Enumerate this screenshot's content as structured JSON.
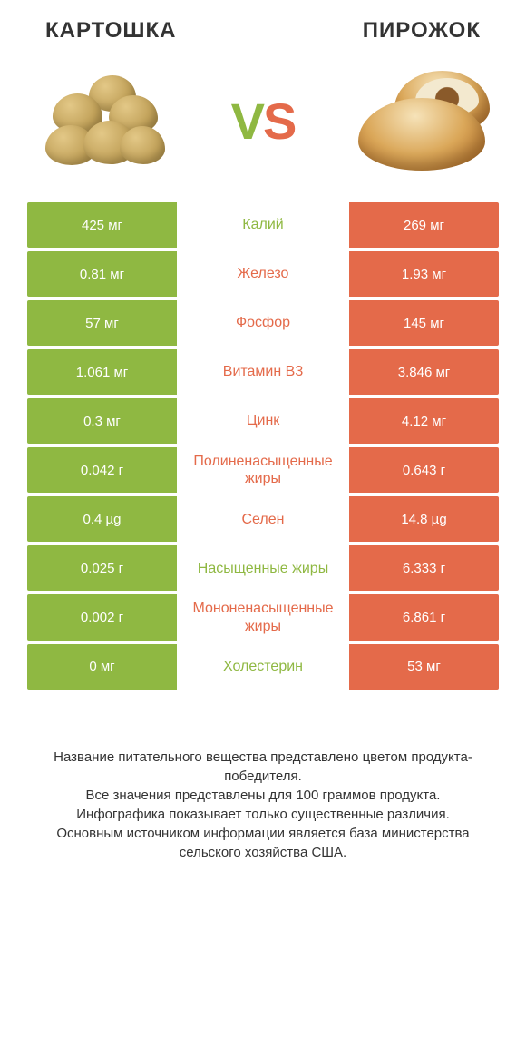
{
  "header": {
    "left_title": "КАРТОШКА",
    "right_title": "ПИРОЖОК",
    "vs_v": "V",
    "vs_s": "S"
  },
  "colors": {
    "green": "#8fb842",
    "orange": "#e46a4a",
    "text": "#333333",
    "bg": "#ffffff"
  },
  "rows": [
    {
      "label": "Калий",
      "left": "425 мг",
      "right": "269 мг",
      "winner": "left"
    },
    {
      "label": "Железо",
      "left": "0.81 мг",
      "right": "1.93 мг",
      "winner": "right"
    },
    {
      "label": "Фосфор",
      "left": "57 мг",
      "right": "145 мг",
      "winner": "right"
    },
    {
      "label": "Витамин B3",
      "left": "1.061 мг",
      "right": "3.846 мг",
      "winner": "right"
    },
    {
      "label": "Цинк",
      "left": "0.3 мг",
      "right": "4.12 мг",
      "winner": "right"
    },
    {
      "label": "Полиненасыщенные жиры",
      "left": "0.042 г",
      "right": "0.643 г",
      "winner": "right"
    },
    {
      "label": "Селен",
      "left": "0.4 µg",
      "right": "14.8 µg",
      "winner": "right"
    },
    {
      "label": "Насыщенные жиры",
      "left": "0.025 г",
      "right": "6.333 г",
      "winner": "left"
    },
    {
      "label": "Мононенасыщенные жиры",
      "left": "0.002 г",
      "right": "6.861 г",
      "winner": "right"
    },
    {
      "label": "Холестерин",
      "left": "0 мг",
      "right": "53 мг",
      "winner": "left"
    }
  ],
  "footnotes": [
    "Название питательного вещества представлено цветом продукта-победителя.",
    "Все значения представлены для 100 граммов продукта.",
    "Инфографика показывает только существенные различия.",
    "Основным источником информации является база министерства сельского хозяйства США."
  ]
}
